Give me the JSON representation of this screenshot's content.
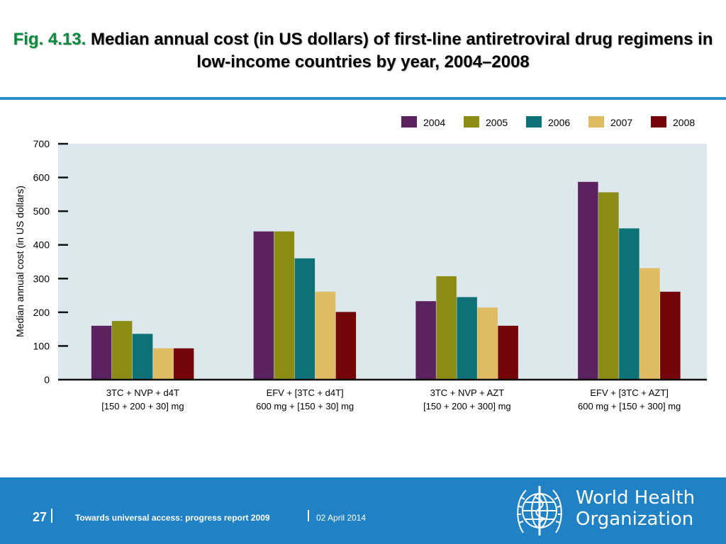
{
  "slide": {
    "title_label": "Fig. 4.13.",
    "title_text": "Median annual cost (in US dollars) of first-line antiretroviral drug regimens in low-income countries by year, 2004–2008",
    "accent_color": "#2a8fc6",
    "label_color": "#0a8a3c"
  },
  "chart_data": {
    "type": "bar",
    "ylabel": "Median annual cost (in US dollars)",
    "ylim": [
      0,
      700
    ],
    "yticks": [
      0,
      100,
      200,
      300,
      400,
      500,
      600,
      700
    ],
    "legend_position": "top-right",
    "plot_background": "#dce8eb",
    "categories": [
      [
        "3TC + NVP + d4T",
        "[150 + 200 + 30] mg"
      ],
      [
        "EFV + [3TC + d4T]",
        "600 mg + [150 + 30] mg"
      ],
      [
        "3TC + NVP + AZT",
        "[150 + 200 + 300] mg"
      ],
      [
        "EFV + [3TC + AZT]",
        "600 mg + [150 + 300] mg"
      ]
    ],
    "series": [
      {
        "name": "2004",
        "color": "#5c2260",
        "values": [
          160,
          440,
          233,
          587
        ]
      },
      {
        "name": "2005",
        "color": "#8a8c14",
        "values": [
          174,
          440,
          307,
          556
        ]
      },
      {
        "name": "2006",
        "color": "#0d7278",
        "values": [
          136,
          360,
          245,
          449
        ]
      },
      {
        "name": "2007",
        "color": "#dfbb62",
        "values": [
          93,
          261,
          214,
          331
        ]
      },
      {
        "name": "2008",
        "color": "#730408",
        "values": [
          93,
          201,
          160,
          261
        ]
      }
    ]
  },
  "footer": {
    "page_number": "27",
    "report_title": "Towards universal access: progress report 2009",
    "date": "02 April 2014",
    "org_name_line1": "World Health",
    "org_name_line2": "Organization",
    "background": "#2081c4"
  }
}
